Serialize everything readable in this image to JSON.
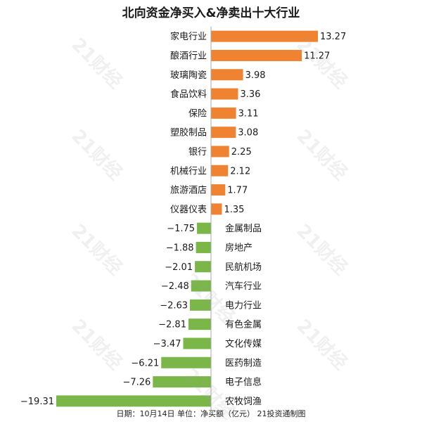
{
  "watermark_text": "21财经",
  "colors": {
    "positive": "#F08332",
    "negative": "#7AB648",
    "axis": "#aaaaaa",
    "text": "#1a1a1a"
  },
  "chart_data": {
    "type": "bar",
    "orientation": "horizontal",
    "title": "北向资金净买入&净卖出十大行业",
    "footer": "日期：10月14日 单位：净买额（亿元） 21投资通制图",
    "categories": [
      "家电行业",
      "酿酒行业",
      "玻璃陶瓷",
      "食品饮料",
      "保险",
      "塑胶制品",
      "银行",
      "机械行业",
      "旅游酒店",
      "仪器仪表",
      "金属制品",
      "房地产",
      "民航机场",
      "汽车行业",
      "电力行业",
      "有色金属",
      "文化传媒",
      "医药制造",
      "电子信息",
      "农牧饲渔"
    ],
    "values": [
      13.27,
      11.27,
      3.98,
      3.36,
      3.11,
      3.08,
      2.25,
      2.12,
      1.77,
      1.35,
      -1.75,
      -1.88,
      -2.01,
      -2.48,
      -2.63,
      -2.81,
      -3.47,
      -6.21,
      -7.26,
      -19.31
    ],
    "value_labels": [
      "13.27",
      "11.27",
      "3.98",
      "3.36",
      "3.11",
      "3.08",
      "2.25",
      "2.12",
      "1.77",
      "1.35",
      "−1.75",
      "−1.88",
      "−2.01",
      "−2.48",
      "−2.63",
      "−2.81",
      "−3.47",
      "−6.21",
      "−7.26",
      "−19.31"
    ],
    "xlim": [
      -19.31,
      13.27
    ],
    "grid": false,
    "legend": "none"
  }
}
